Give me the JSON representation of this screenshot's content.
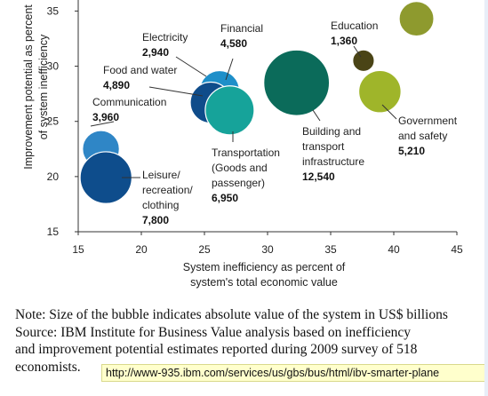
{
  "colors": {
    "axis": "#333333",
    "connector": "#333333"
  },
  "notes": {
    "line1": "Note: Size of the bubble indicates absolute value of the system in US$ billions",
    "line2": "Source: IBM Institute for Business Value analysis based on inefficiency",
    "line3": "and improvement potential estimates reported during 2009 survey of 518",
    "line4": "economists."
  },
  "url_tooltip": "http://www-935.ibm.com/services/us/gbs/bus/html/ibv-smarter-plane",
  "chart_data": {
    "type": "scatter",
    "variant": "bubble",
    "title": "",
    "xlabel": "System inefficiency as percent of system's total economic value",
    "ylabel": "Improvement potential as percent of system inefficiency",
    "xlim": [
      15,
      45
    ],
    "ylim": [
      15,
      36
    ],
    "xticks": [
      15,
      20,
      25,
      30,
      35,
      40,
      45
    ],
    "yticks": [
      15,
      20,
      25,
      30,
      35
    ],
    "grid": false,
    "size_note": "US$ billions",
    "points": [
      {
        "name": "Leisure/ recreation/ clothing",
        "label_lines": [
          "Leisure/",
          "recreation/",
          "clothing"
        ],
        "value_label": "7,800",
        "x": 17.2,
        "y": 19.9,
        "size": 7800,
        "color": "#0e4d8c"
      },
      {
        "name": "Communication",
        "label_lines": [
          "Communication"
        ],
        "value_label": "3,960",
        "x": 16.8,
        "y": 22.5,
        "size": 3960,
        "color": "#2f86c6"
      },
      {
        "name": "Food and water",
        "label_lines": [
          "Food and water"
        ],
        "value_label": "4,890",
        "x": 25.5,
        "y": 26.7,
        "size": 4890,
        "color": "#0f4c8a"
      },
      {
        "name": "Electricity",
        "label_lines": [
          "Electricity"
        ],
        "value_label": "2,940",
        "x": 26.0,
        "y": 28.2,
        "size": 2940,
        "color": "#8fd3ef"
      },
      {
        "name": "Financial",
        "label_lines": [
          "Financial"
        ],
        "value_label": "4,580",
        "x": 26.2,
        "y": 27.8,
        "size": 4580,
        "color": "#1e8fc9"
      },
      {
        "name": "Transportation (Goods and passenger)",
        "label_lines": [
          "Transportation",
          "(Goods and",
          "passenger)"
        ],
        "value_label": "6,950",
        "x": 27.0,
        "y": 26.0,
        "size": 6950,
        "color": "#16a39a"
      },
      {
        "name": "Building and transport infrastructure",
        "label_lines": [
          "Building and",
          "transport",
          "infrastructure"
        ],
        "value_label": "12,540",
        "x": 32.3,
        "y": 28.5,
        "size": 12540,
        "color": "#0b6b5a"
      },
      {
        "name": "Education",
        "label_lines": [
          "Education"
        ],
        "value_label": "1,360",
        "x": 37.6,
        "y": 30.5,
        "size": 1360,
        "color": "#4a4416"
      },
      {
        "name": "Government and safety",
        "label_lines": [
          "Government",
          "and safety"
        ],
        "value_label": "5,210",
        "x": 38.9,
        "y": 27.7,
        "size": 5210,
        "color": "#9fb52a"
      },
      {
        "name": "",
        "label_lines": [],
        "value_label": "",
        "x": 41.8,
        "y": 34.3,
        "size": 3500,
        "color": "#8e9a2e"
      }
    ]
  }
}
